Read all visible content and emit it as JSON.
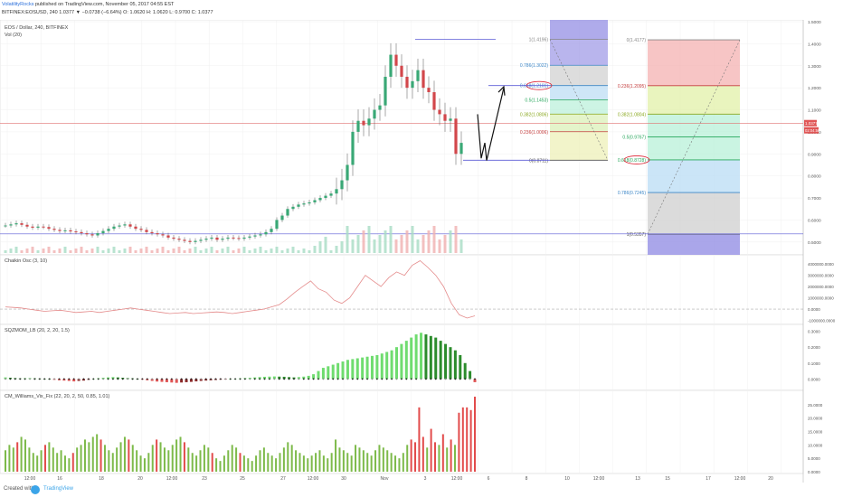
{
  "header": {
    "author": "VolatilityRocks",
    "published": "published on TradingView.com, November 05, 2017 04:55 EST",
    "symbol_line": "BITFINEX:EOSUSD, 240  1.0377 ▼ −0.0738 (−6.64%) O: 1.0620 H: 1.0620 L: 0.9700 C: 1.0377"
  },
  "footer": {
    "created_with": "Created with",
    "brand": "TradingView"
  },
  "chart_data": [
    {
      "type": "candlestick",
      "title": "EOS / Dollar, 240, BITFINEX",
      "volume_label": "Vol (20)",
      "ylim": [
        0.45,
        1.5
      ],
      "y_ticks": [
        "1.5000",
        "1.4000",
        "1.3000",
        "1.2000",
        "1.1000",
        "1.0000",
        "0.9000",
        "0.8000",
        "0.7000",
        "0.6000",
        "0.5000"
      ],
      "last_price": "1.0377",
      "countdown": "02:04:56",
      "x_ticks": [
        "12:00",
        "16",
        "18",
        "20",
        "12:00",
        "23",
        "25",
        "27",
        "12:00",
        "30",
        "Nov",
        "3",
        "12:00",
        "6",
        "8",
        "10",
        "12:00",
        "13",
        "15",
        "17",
        "12:00",
        "20"
      ],
      "fib_left": [
        {
          "level": "1(1.4196)",
          "value": 1.4196
        },
        {
          "level": "0.786(1.3022)",
          "value": 1.3022
        },
        {
          "level": "0.618(1.2101)",
          "value": 1.2101
        },
        {
          "level": "0.5(1.1453)",
          "value": 1.1453
        },
        {
          "level": "0.382(1.0806)",
          "value": 1.0806
        },
        {
          "level": "0.236(1.0006)",
          "value": 1.0006
        },
        {
          "level": "0(0.8711)",
          "value": 0.8711
        }
      ],
      "fib_right": [
        {
          "level": "0(1.4177)",
          "value": 1.4177
        },
        {
          "level": "0.236(1.2095)",
          "value": 1.2095
        },
        {
          "level": "0.382(1.0804)",
          "value": 1.0804
        },
        {
          "level": "0.5(0.9767)",
          "value": 0.9767
        },
        {
          "level": "0.618(0.8728)",
          "value": 0.8728
        },
        {
          "level": "0.786(0.7245)",
          "value": 0.7245
        },
        {
          "level": "1(0.5357)",
          "value": 0.5357
        }
      ],
      "candles": [
        0.575,
        0.58,
        0.585,
        0.578,
        0.57,
        0.565,
        0.57,
        0.568,
        0.56,
        0.555,
        0.55,
        0.553,
        0.548,
        0.545,
        0.54,
        0.535,
        0.53,
        0.54,
        0.55,
        0.56,
        0.57,
        0.575,
        0.58,
        0.57,
        0.56,
        0.555,
        0.545,
        0.54,
        0.535,
        0.53,
        0.52,
        0.515,
        0.51,
        0.505,
        0.5,
        0.505,
        0.51,
        0.515,
        0.52,
        0.51,
        0.515,
        0.52,
        0.518,
        0.515,
        0.52,
        0.525,
        0.53,
        0.535,
        0.545,
        0.56,
        0.6,
        0.62,
        0.65,
        0.66,
        0.67,
        0.675,
        0.68,
        0.69,
        0.7,
        0.71,
        0.72,
        0.74,
        0.78,
        0.85,
        1.0,
        1.05,
        1.03,
        1.06,
        1.1,
        1.12,
        1.25,
        1.35,
        1.3,
        1.25,
        1.2,
        1.23,
        1.28,
        1.2,
        1.18,
        1.1,
        1.08,
        1.05,
        1.06,
        0.9,
        0.95
      ]
    },
    {
      "type": "line",
      "title": "Chaikin Osc (3, 10)",
      "ylim": [
        -1200000,
        4500000
      ],
      "y_ticks": [
        "4000000.0000",
        "3000000.0000",
        "2000000.0000",
        "1000000.0000",
        "0.0000",
        "-1000000.0000"
      ],
      "values": [
        200000,
        150000,
        100000,
        0,
        -100000,
        -200000,
        -150000,
        -100000,
        -200000,
        -300000,
        -250000,
        -200000,
        -300000,
        -200000,
        -100000,
        0,
        100000,
        0,
        -100000,
        -200000,
        -300000,
        -400000,
        -350000,
        -300000,
        -400000,
        -350000,
        -300000,
        -250000,
        -300000,
        -400000,
        -300000,
        -200000,
        -100000,
        0,
        200000,
        400000,
        900000,
        1500000,
        2000000,
        2500000,
        1800000,
        1500000,
        800000,
        500000,
        1000000,
        2000000,
        3000000,
        2500000,
        2000000,
        2800000,
        3300000,
        3000000,
        3900000,
        4300000,
        3700000,
        3000000,
        2000000,
        500000,
        -500000,
        -800000,
        -600000
      ]
    },
    {
      "type": "bar",
      "title": "SQZMOM_LB (20, 2, 20, 1.5)",
      "ylim": [
        -0.06,
        0.32
      ],
      "y_ticks": [
        "0.3000",
        "0.2000",
        "0.1000",
        "0.0000"
      ],
      "values": [
        0.01,
        0.008,
        0.006,
        0.004,
        0.005,
        0.006,
        0.004,
        0.003,
        0.002,
        0.0,
        -0.005,
        -0.008,
        -0.01,
        -0.012,
        -0.015,
        -0.012,
        -0.01,
        -0.005,
        0.0,
        0.005,
        0.008,
        0.01,
        0.012,
        0.01,
        0.008,
        0.006,
        0.004,
        0.0,
        -0.004,
        -0.008,
        -0.012,
        -0.016,
        -0.018,
        -0.02,
        -0.022,
        -0.024,
        -0.022,
        -0.02,
        -0.018,
        -0.015,
        -0.012,
        -0.01,
        -0.008,
        -0.006,
        -0.004,
        -0.002,
        0.0,
        0.002,
        0.004,
        0.006,
        0.008,
        0.01,
        0.012,
        0.014,
        0.015,
        0.016,
        0.015,
        0.014,
        0.012,
        0.01,
        0.012,
        0.015,
        0.02,
        0.03,
        0.05,
        0.07,
        0.08,
        0.09,
        0.1,
        0.11,
        0.12,
        0.125,
        0.13,
        0.135,
        0.14,
        0.145,
        0.15,
        0.16,
        0.17,
        0.18,
        0.2,
        0.22,
        0.24,
        0.26,
        0.28,
        0.29,
        0.28,
        0.27,
        0.26,
        0.24,
        0.22,
        0.2,
        0.18,
        0.15,
        0.1,
        0.05,
        -0.02
      ]
    },
    {
      "type": "bar",
      "title": "CM_Williams_Vix_Fix (22, 20, 2, 50, 0.85, 1.01)",
      "ylim": [
        0,
        0.29
      ],
      "y_ticks": [
        "25.0000",
        "20.0000",
        "15.0000",
        "10.0000",
        "5.0000",
        "0.0000"
      ],
      "values": [
        0.08,
        0.1,
        0.09,
        0.11,
        0.13,
        0.12,
        0.09,
        0.07,
        0.06,
        0.08,
        0.1,
        0.11,
        0.09,
        0.07,
        0.08,
        0.06,
        0.05,
        0.07,
        0.09,
        0.1,
        0.12,
        0.11,
        0.13,
        0.14,
        0.12,
        0.1,
        0.08,
        0.07,
        0.09,
        0.11,
        0.13,
        0.12,
        0.1,
        0.08,
        0.06,
        0.05,
        0.07,
        0.1,
        0.12,
        0.11,
        0.09,
        0.08,
        0.1,
        0.12,
        0.13,
        0.11,
        0.09,
        0.07,
        0.06,
        0.08,
        0.1,
        0.09,
        0.07,
        0.05,
        0.04,
        0.06,
        0.08,
        0.1,
        0.09,
        0.07,
        0.06,
        0.05,
        0.04,
        0.06,
        0.08,
        0.09,
        0.07,
        0.06,
        0.05,
        0.07,
        0.09,
        0.11,
        0.1,
        0.08,
        0.07,
        0.06,
        0.05,
        0.06,
        0.07,
        0.08,
        0.06,
        0.05,
        0.07,
        0.12,
        0.09,
        0.08,
        0.07,
        0.06,
        0.1,
        0.09,
        0.08,
        0.07,
        0.06,
        0.08,
        0.1,
        0.09,
        0.08,
        0.07,
        0.06,
        0.05,
        0.07,
        0.1,
        0.12,
        0.11,
        0.24,
        0.13,
        0.09,
        0.16,
        0.11,
        0.1,
        0.14,
        0.09,
        0.12,
        0.1,
        0.22,
        0.24,
        0.24,
        0.23,
        0.28
      ]
    }
  ]
}
